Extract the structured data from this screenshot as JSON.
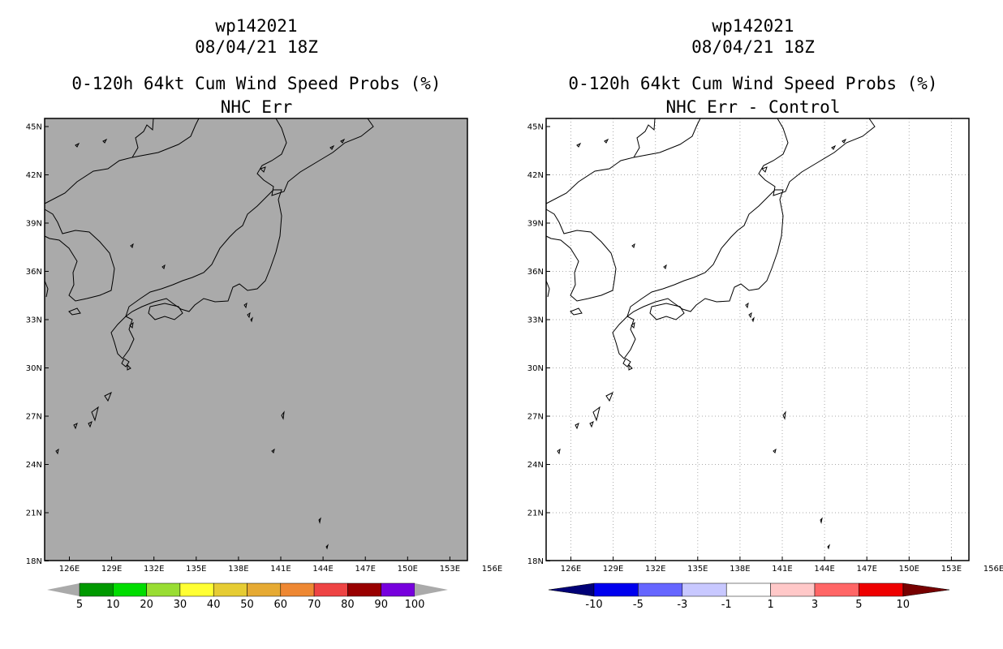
{
  "left": {
    "title1": "wp142021",
    "title2": "08/04/21 18Z",
    "title3": "0-120h 64kt Cum Wind Speed Probs (%)",
    "title4": "NHC Err",
    "colorbar": {
      "colors": [
        "#009900",
        "#00dd00",
        "#99dd33",
        "#ffff33",
        "#e6cc33",
        "#e6aa33",
        "#ee8833",
        "#ee4444",
        "#990000",
        "#7700dd"
      ],
      "labels": [
        "5",
        "10",
        "20",
        "30",
        "40",
        "50",
        "60",
        "70",
        "80",
        "90",
        "100"
      ]
    }
  },
  "right": {
    "title1": "wp142021",
    "title2": "08/04/21 18Z",
    "title3": "0-120h 64kt Cum Wind Speed Probs (%)",
    "title4": "NHC Err - Control",
    "colorbar": {
      "colors": [
        "#0000ee",
        "#6666ff",
        "#c8c8ff",
        "#ffffff",
        "#ffc8c8",
        "#ff6666",
        "#ee0000"
      ],
      "end_colors": [
        "#000077",
        "#770000"
      ],
      "labels": [
        "-10",
        "-5",
        "-3",
        "-1",
        "1",
        "3",
        "5",
        "10"
      ]
    }
  },
  "axes": {
    "lat_labels": [
      "45N",
      "42N",
      "39N",
      "36N",
      "33N",
      "30N",
      "27N",
      "24N",
      "21N",
      "18N"
    ],
    "lon_labels": [
      "126E",
      "129E",
      "132E",
      "135E",
      "138E",
      "141E",
      "144E",
      "147E",
      "150E",
      "153E",
      "156E"
    ]
  },
  "colors": {
    "land_fill_left": "#aaaaaa",
    "grid": "#aaaaaa"
  }
}
